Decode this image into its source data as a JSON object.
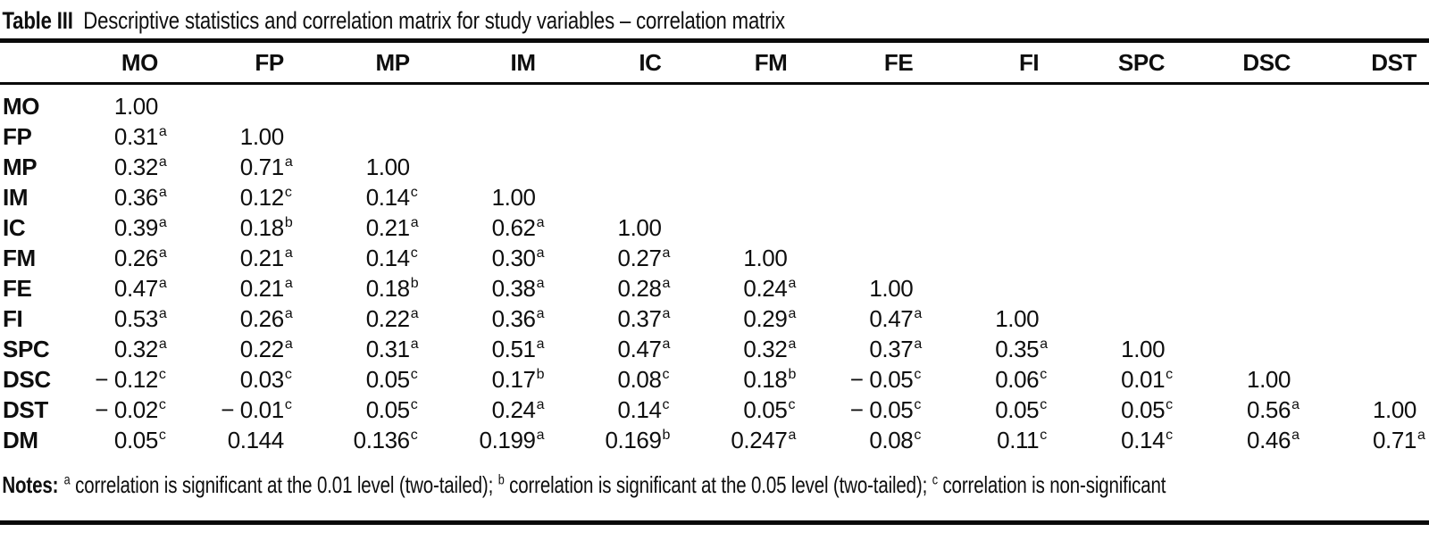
{
  "title": {
    "label": "Table III",
    "text": "Descriptive statistics and correlation matrix for study variables – correlation matrix"
  },
  "chart_data": {
    "type": "table",
    "title": "Table III Descriptive statistics and correlation matrix for study variables – correlation matrix",
    "columns": [
      "MO",
      "FP",
      "MP",
      "IM",
      "IC",
      "FM",
      "FE",
      "FI",
      "SPC",
      "DSC",
      "DST"
    ],
    "row_labels": [
      "MO",
      "FP",
      "MP",
      "IM",
      "IC",
      "FM",
      "FE",
      "FI",
      "SPC",
      "DSC",
      "DST",
      "DM"
    ],
    "rows": [
      {
        "label": "MO",
        "cells": [
          {
            "v": "1.00",
            "s": ""
          }
        ]
      },
      {
        "label": "FP",
        "cells": [
          {
            "v": "0.31",
            "s": "a"
          },
          {
            "v": "1.00",
            "s": ""
          }
        ]
      },
      {
        "label": "MP",
        "cells": [
          {
            "v": "0.32",
            "s": "a"
          },
          {
            "v": "0.71",
            "s": "a"
          },
          {
            "v": "1.00",
            "s": ""
          }
        ]
      },
      {
        "label": "IM",
        "cells": [
          {
            "v": "0.36",
            "s": "a"
          },
          {
            "v": "0.12",
            "s": "c"
          },
          {
            "v": "0.14",
            "s": "c"
          },
          {
            "v": "1.00",
            "s": ""
          }
        ]
      },
      {
        "label": "IC",
        "cells": [
          {
            "v": "0.39",
            "s": "a"
          },
          {
            "v": "0.18",
            "s": "b"
          },
          {
            "v": "0.21",
            "s": "a"
          },
          {
            "v": "0.62",
            "s": "a"
          },
          {
            "v": "1.00",
            "s": ""
          }
        ]
      },
      {
        "label": "FM",
        "cells": [
          {
            "v": "0.26",
            "s": "a"
          },
          {
            "v": "0.21",
            "s": "a"
          },
          {
            "v": "0.14",
            "s": "c"
          },
          {
            "v": "0.30",
            "s": "a"
          },
          {
            "v": "0.27",
            "s": "a"
          },
          {
            "v": "1.00",
            "s": ""
          }
        ]
      },
      {
        "label": "FE",
        "cells": [
          {
            "v": "0.47",
            "s": "a"
          },
          {
            "v": "0.21",
            "s": "a"
          },
          {
            "v": "0.18",
            "s": "b"
          },
          {
            "v": "0.38",
            "s": "a"
          },
          {
            "v": "0.28",
            "s": "a"
          },
          {
            "v": "0.24",
            "s": "a"
          },
          {
            "v": "1.00",
            "s": ""
          }
        ]
      },
      {
        "label": "FI",
        "cells": [
          {
            "v": "0.53",
            "s": "a"
          },
          {
            "v": "0.26",
            "s": "a"
          },
          {
            "v": "0.22",
            "s": "a"
          },
          {
            "v": "0.36",
            "s": "a"
          },
          {
            "v": "0.37",
            "s": "a"
          },
          {
            "v": "0.29",
            "s": "a"
          },
          {
            "v": "0.47",
            "s": "a"
          },
          {
            "v": "1.00",
            "s": ""
          }
        ]
      },
      {
        "label": "SPC",
        "cells": [
          {
            "v": "0.32",
            "s": "a"
          },
          {
            "v": "0.22",
            "s": "a"
          },
          {
            "v": "0.31",
            "s": "a"
          },
          {
            "v": "0.51",
            "s": "a"
          },
          {
            "v": "0.47",
            "s": "a"
          },
          {
            "v": "0.32",
            "s": "a"
          },
          {
            "v": "0.37",
            "s": "a"
          },
          {
            "v": "0.35",
            "s": "a"
          },
          {
            "v": "1.00",
            "s": ""
          }
        ]
      },
      {
        "label": "DSC",
        "cells": [
          {
            "v": "− 0.12",
            "s": "c"
          },
          {
            "v": "0.03",
            "s": "c"
          },
          {
            "v": "0.05",
            "s": "c"
          },
          {
            "v": "0.17",
            "s": "b"
          },
          {
            "v": "0.08",
            "s": "c"
          },
          {
            "v": "0.18",
            "s": "b"
          },
          {
            "v": "− 0.05",
            "s": "c"
          },
          {
            "v": "0.06",
            "s": "c"
          },
          {
            "v": "0.01",
            "s": "c"
          },
          {
            "v": "1.00",
            "s": ""
          }
        ]
      },
      {
        "label": "DST",
        "cells": [
          {
            "v": "− 0.02",
            "s": "c"
          },
          {
            "v": "− 0.01",
            "s": "c"
          },
          {
            "v": "0.05",
            "s": "c"
          },
          {
            "v": "0.24",
            "s": "a"
          },
          {
            "v": "0.14",
            "s": "c"
          },
          {
            "v": "0.05",
            "s": "c"
          },
          {
            "v": "− 0.05",
            "s": "c"
          },
          {
            "v": "0.05",
            "s": "c"
          },
          {
            "v": "0.05",
            "s": "c"
          },
          {
            "v": "0.56",
            "s": "a"
          },
          {
            "v": "1.00",
            "s": ""
          }
        ]
      },
      {
        "label": "DM",
        "cells": [
          {
            "v": "0.05",
            "s": "c"
          },
          {
            "v": "0.144",
            "s": ""
          },
          {
            "v": "0.136",
            "s": "c"
          },
          {
            "v": "0.199",
            "s": "a"
          },
          {
            "v": "0.169",
            "s": "b"
          },
          {
            "v": "0.247",
            "s": "a"
          },
          {
            "v": "0.08",
            "s": "c"
          },
          {
            "v": "0.11",
            "s": "c"
          },
          {
            "v": "0.14",
            "s": "c"
          },
          {
            "v": "0.46",
            "s": "a"
          },
          {
            "v": "0.71",
            "s": "a"
          }
        ]
      }
    ]
  },
  "notes": {
    "label": "Notes:",
    "segments": [
      {
        "sup": "a",
        "text": "correlation is significant at the 0.01 level (two-tailed); "
      },
      {
        "sup": "b",
        "text": "correlation is significant at the 0.05 level (two-tailed); "
      },
      {
        "sup": "c",
        "text": "correlation is non-significant"
      }
    ]
  },
  "colors": {
    "text": "#0e0e0e",
    "rule": "#0a0a0a",
    "background": "#ffffff"
  }
}
